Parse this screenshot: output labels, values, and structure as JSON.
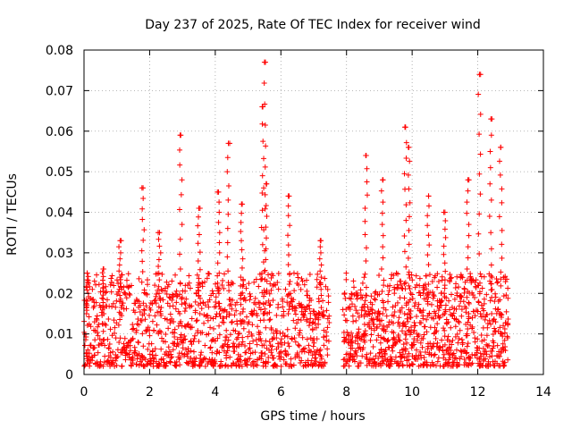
{
  "chart_data": {
    "type": "scatter",
    "title": "Day 237 of 2025, Rate Of TEC Index for receiver wind",
    "xlabel": "GPS time / hours",
    "ylabel": "ROTI / TECUs",
    "xlim": [
      0,
      14
    ],
    "ylim": [
      0,
      0.08
    ],
    "x_ticks": [
      0,
      2,
      4,
      6,
      8,
      10,
      12,
      14
    ],
    "y_ticks": [
      0,
      0.01,
      0.02,
      0.03,
      0.04,
      0.05,
      0.06,
      0.07,
      0.08
    ],
    "x_tick_labels": [
      "0",
      "2",
      "4",
      "6",
      "8",
      "10",
      "12",
      "14"
    ],
    "y_tick_labels": [
      "0",
      "0.01",
      "0.02",
      "0.03",
      "0.04",
      "0.05",
      "0.06",
      "0.07",
      "0.08"
    ],
    "grid": true,
    "marker": "+",
    "color": "#ff0000",
    "series": [
      {
        "x_range": [
          0.0,
          7.5
        ],
        "gap": [
          7.5,
          7.9
        ],
        "x_range2": [
          7.9,
          12.95
        ],
        "typical_y_range": [
          0.002,
          0.025
        ],
        "peaks": [
          {
            "x": 0.1,
            "y": 0.025
          },
          {
            "x": 0.6,
            "y": 0.026
          },
          {
            "x": 1.1,
            "y": 0.033
          },
          {
            "x": 1.8,
            "y": 0.046
          },
          {
            "x": 2.3,
            "y": 0.035
          },
          {
            "x": 2.95,
            "y": 0.059
          },
          {
            "x": 3.5,
            "y": 0.041
          },
          {
            "x": 4.4,
            "y": 0.057
          },
          {
            "x": 4.1,
            "y": 0.045
          },
          {
            "x": 4.8,
            "y": 0.042
          },
          {
            "x": 5.5,
            "y": 0.077
          },
          {
            "x": 5.45,
            "y": 0.066
          },
          {
            "x": 5.55,
            "y": 0.047
          },
          {
            "x": 6.25,
            "y": 0.044
          },
          {
            "x": 7.2,
            "y": 0.033
          },
          {
            "x": 8.6,
            "y": 0.054
          },
          {
            "x": 9.1,
            "y": 0.048
          },
          {
            "x": 9.8,
            "y": 0.061
          },
          {
            "x": 9.9,
            "y": 0.056
          },
          {
            "x": 10.5,
            "y": 0.044
          },
          {
            "x": 11.0,
            "y": 0.04
          },
          {
            "x": 11.7,
            "y": 0.048
          },
          {
            "x": 12.05,
            "y": 0.074
          },
          {
            "x": 12.4,
            "y": 0.063
          },
          {
            "x": 12.7,
            "y": 0.056
          }
        ]
      }
    ]
  }
}
